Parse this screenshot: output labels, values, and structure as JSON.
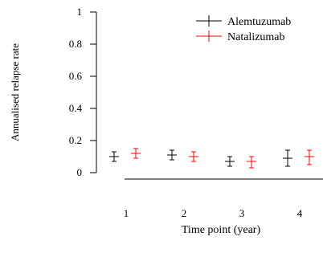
{
  "chart_data": {
    "type": "scatter",
    "error_bars": true,
    "title": "",
    "xlabel": "Time point (year)",
    "ylabel": "Annualised relapse rate",
    "x": [
      1,
      2,
      3,
      4
    ],
    "xticks": [
      "1",
      "2",
      "3",
      "4"
    ],
    "yticks": [
      "0",
      "0.2",
      "0.4",
      "0.6",
      "0.8",
      "1"
    ],
    "ylim": [
      0,
      1
    ],
    "grid": false,
    "legend_position": "top-right",
    "series": [
      {
        "name": "Alemtuzumab",
        "color": "#000000",
        "values": [
          0.1,
          0.11,
          0.07,
          0.09
        ],
        "lower": [
          0.07,
          0.08,
          0.04,
          0.04
        ],
        "upper": [
          0.13,
          0.14,
          0.1,
          0.14
        ]
      },
      {
        "name": "Natalizumab",
        "color": "#ff0000",
        "values": [
          0.12,
          0.1,
          0.07,
          0.1
        ],
        "lower": [
          0.09,
          0.07,
          0.03,
          0.05
        ],
        "upper": [
          0.15,
          0.13,
          0.1,
          0.14
        ]
      }
    ]
  }
}
